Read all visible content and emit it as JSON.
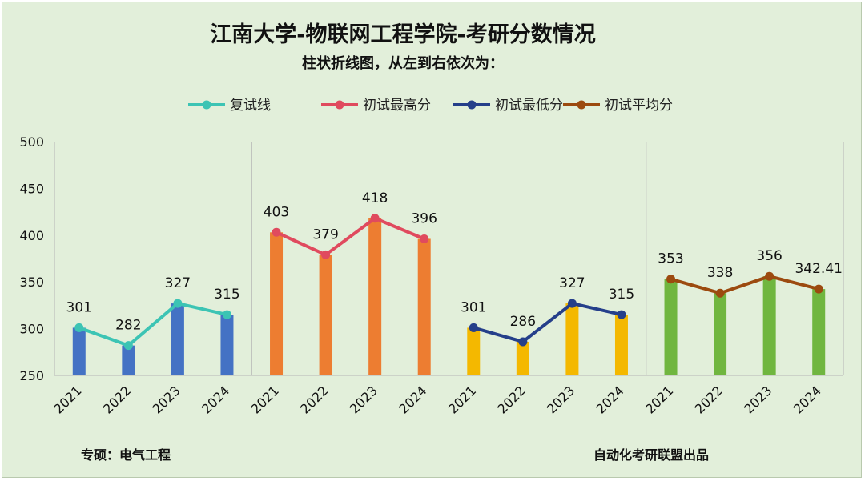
{
  "chart_data": {
    "type": "bar+line",
    "title": "江南大学-物联网工程学院-考研分数情况",
    "subtitle": "柱状折线图，从左到右依次为：",
    "categories": [
      "2021",
      "2022",
      "2023",
      "2024"
    ],
    "ylim": [
      250,
      500
    ],
    "yticks": [
      "250",
      "300",
      "350",
      "400",
      "450",
      "500"
    ],
    "series": [
      {
        "name": "复试线",
        "values": [
          301,
          282,
          327,
          315
        ],
        "labels": [
          "301",
          "282",
          "327",
          "315"
        ],
        "bar_color": "#4472c4",
        "line_color": "#3cc4b4"
      },
      {
        "name": "初试最高分",
        "values": [
          403,
          379,
          418,
          396
        ],
        "labels": [
          "403",
          "379",
          "418",
          "396"
        ],
        "bar_color": "#ed7d31",
        "line_color": "#e04a5e"
      },
      {
        "name": "初试最低分",
        "values": [
          301,
          286,
          327,
          315
        ],
        "labels": [
          "301",
          "286",
          "327",
          "315"
        ],
        "bar_color": "#f4b800",
        "line_color": "#253f8a"
      },
      {
        "name": "初试平均分",
        "values": [
          353,
          338,
          356,
          342.41
        ],
        "labels": [
          "353",
          "338",
          "356",
          "342.41"
        ],
        "bar_color": "#70b63f",
        "line_color": "#9c4a0f"
      }
    ]
  },
  "footer": {
    "left": "专硕：电气工程",
    "right": "自动化考研联盟出品"
  }
}
